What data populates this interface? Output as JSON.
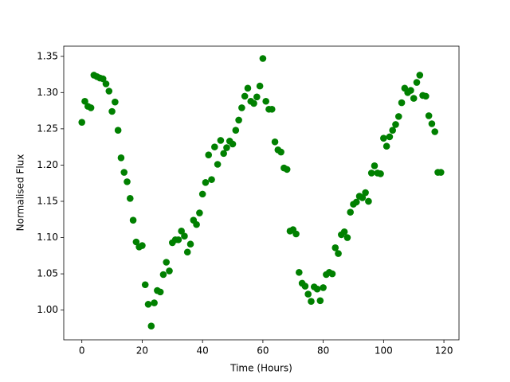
{
  "chart_data": {
    "type": "scatter",
    "xlabel": "Time (Hours)",
    "ylabel": "Normalised Flux",
    "color": "#008000",
    "xlim": [
      -6,
      125
    ],
    "ylim": [
      0.959,
      1.364
    ],
    "xticks": [
      0,
      20,
      40,
      60,
      80,
      100,
      120
    ],
    "yticks": [
      {
        "value": 1.0,
        "label": "1.00"
      },
      1.05,
      {
        "value": 1.1,
        "label": "1.10"
      },
      1.15,
      {
        "value": 1.2,
        "label": "1.20"
      },
      1.25,
      {
        "value": 1.3,
        "label": "1.30"
      },
      1.35
    ],
    "x": [
      0,
      1,
      2,
      3,
      4,
      5,
      6,
      7,
      8,
      9,
      10,
      11,
      12,
      13,
      14,
      15,
      16,
      17,
      18,
      19,
      20,
      21,
      22,
      23,
      24,
      25,
      26,
      27,
      28,
      29,
      30,
      31,
      32,
      33,
      34,
      35,
      36,
      37,
      38,
      39,
      40,
      41,
      42,
      43,
      44,
      45,
      46,
      47,
      48,
      49,
      50,
      51,
      52,
      53,
      54,
      55,
      56,
      57,
      58,
      59,
      60,
      61,
      62,
      63,
      64,
      65,
      66,
      67,
      68,
      69,
      70,
      71,
      72,
      73,
      74,
      75,
      76,
      77,
      78,
      79,
      80,
      81,
      82,
      83,
      84,
      85,
      86,
      87,
      88,
      89,
      90,
      91,
      92,
      93,
      94,
      95,
      96,
      97,
      98,
      99,
      100,
      101,
      102,
      103,
      104,
      105,
      106,
      107,
      108,
      109,
      110,
      111,
      112,
      113,
      114,
      115,
      116,
      117,
      118,
      119
    ],
    "values": [
      1.259,
      1.288,
      1.281,
      1.279,
      1.324,
      1.322,
      1.32,
      1.319,
      1.312,
      1.302,
      1.274,
      1.287,
      1.248,
      1.21,
      1.19,
      1.177,
      1.154,
      1.124,
      1.094,
      1.087,
      1.089,
      1.035,
      1.008,
      0.978,
      1.01,
      1.027,
      1.025,
      1.049,
      1.066,
      1.054,
      1.093,
      1.097,
      1.097,
      1.109,
      1.102,
      1.08,
      1.091,
      1.124,
      1.118,
      1.134,
      1.16,
      1.176,
      1.214,
      1.18,
      1.225,
      1.201,
      1.234,
      1.216,
      1.224,
      1.233,
      1.229,
      1.248,
      1.262,
      1.279,
      1.295,
      1.306,
      1.288,
      1.285,
      1.294,
      1.309,
      1.347,
      1.288,
      1.277,
      1.277,
      1.232,
      1.221,
      1.218,
      1.196,
      1.194,
      1.109,
      1.111,
      1.105,
      1.052,
      1.037,
      1.033,
      1.022,
      1.012,
      1.032,
      1.029,
      1.013,
      1.031,
      1.049,
      1.052,
      1.05,
      1.086,
      1.078,
      1.104,
      1.108,
      1.1,
      1.135,
      1.146,
      1.149,
      1.157,
      1.155,
      1.162,
      1.15,
      1.189,
      1.199,
      1.189,
      1.188,
      1.237,
      1.226,
      1.239,
      1.248,
      1.256,
      1.267,
      1.286,
      1.306,
      1.3,
      1.303,
      1.292,
      1.314,
      1.324,
      1.296,
      1.295,
      1.268,
      1.257,
      1.246,
      1.19,
      1.19
    ]
  }
}
